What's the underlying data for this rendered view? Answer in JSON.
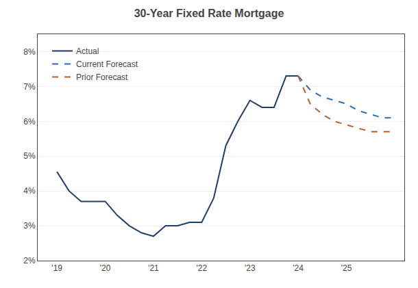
{
  "chart_data": {
    "type": "line",
    "title": "30-Year Fixed Rate Mortgage",
    "xlim": [
      2018.6,
      2026.2
    ],
    "xticks": [
      {
        "value": 2019,
        "label": "'19"
      },
      {
        "value": 2020,
        "label": "'20"
      },
      {
        "value": 2021,
        "label": "'21"
      },
      {
        "value": 2022,
        "label": "'22"
      },
      {
        "value": 2023,
        "label": "'23"
      },
      {
        "value": 2024,
        "label": "'24"
      },
      {
        "value": 2025,
        "label": "'25"
      }
    ],
    "ylim": [
      0.02,
      0.085
    ],
    "yticks": [
      {
        "value": 0.02,
        "label": "2%"
      },
      {
        "value": 0.03,
        "label": "3%"
      },
      {
        "value": 0.04,
        "label": "4%"
      },
      {
        "value": 0.05,
        "label": "5%"
      },
      {
        "value": 0.06,
        "label": "6%"
      },
      {
        "value": 0.07,
        "label": "7%"
      },
      {
        "value": 0.08,
        "label": "8%"
      }
    ],
    "grid": true,
    "legend": "upper left",
    "series": [
      {
        "name": "Actual",
        "color": "#1f3d6e",
        "line_style": "solid",
        "x": [
          2019.0,
          2019.25,
          2019.5,
          2019.75,
          2020.0,
          2020.25,
          2020.5,
          2020.75,
          2021.0,
          2021.25,
          2021.5,
          2021.75,
          2022.0,
          2022.25,
          2022.5,
          2022.75,
          2023.0,
          2023.25,
          2023.5,
          2023.75,
          2024.0
        ],
        "values": [
          0.0455,
          0.04,
          0.037,
          0.037,
          0.037,
          0.033,
          0.03,
          0.028,
          0.027,
          0.03,
          0.03,
          0.031,
          0.031,
          0.038,
          0.053,
          0.06,
          0.066,
          0.064,
          0.064,
          0.073,
          0.073
        ]
      },
      {
        "name": "Current Forecast",
        "color": "#2e6db4",
        "line_style": "dashed",
        "x": [
          2024.0,
          2024.25,
          2024.5,
          2024.75,
          2025.0,
          2025.25,
          2025.5,
          2025.75,
          2026.0
        ],
        "values": [
          0.073,
          0.069,
          0.067,
          0.066,
          0.065,
          0.063,
          0.062,
          0.061,
          0.061
        ]
      },
      {
        "name": "Prior Forecast",
        "color": "#b85c2a",
        "line_style": "dashed",
        "x": [
          2024.0,
          2024.25,
          2024.5,
          2024.75,
          2025.0,
          2025.25,
          2025.5,
          2025.75,
          2026.0
        ],
        "values": [
          0.073,
          0.065,
          0.062,
          0.06,
          0.059,
          0.058,
          0.057,
          0.057,
          0.057
        ]
      }
    ]
  }
}
